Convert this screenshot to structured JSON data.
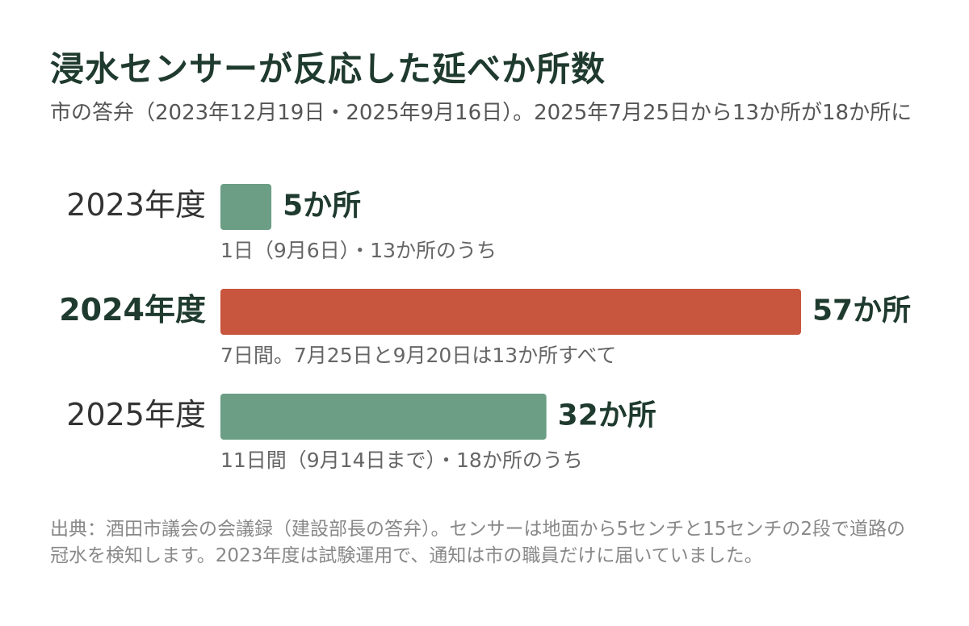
{
  "chart_data": {
    "type": "bar",
    "orientation": "horizontal",
    "title": "浸水センサーが反応した延べか所数",
    "subtitle": "市の答弁（2023年12月19日・2025年9月16日）。2025年7月25日から13か所が18か所に",
    "categories": [
      "2023年度",
      "2024年度",
      "2025年度"
    ],
    "values": [
      5,
      57,
      32
    ],
    "value_labels": [
      "5か所",
      "57か所",
      "32か所"
    ],
    "colors": [
      "#6b9e85",
      "#c8553d",
      "#6b9e85"
    ],
    "emphasis": [
      false,
      true,
      false
    ],
    "notes": [
      "1日（9月6日）・13か所のうち",
      "7日間。7月25日と9月20日は13か所すべて",
      "11日間（9月14日まで）・18か所のうち"
    ],
    "source": "出典：酒田市議会の会議録（建設部長の答弁）。センサーは地面から5センチと15センチの2段で道路の冠水を検知します。2023年度は試験運用で、通知は市の職員だけに届いていました。"
  }
}
